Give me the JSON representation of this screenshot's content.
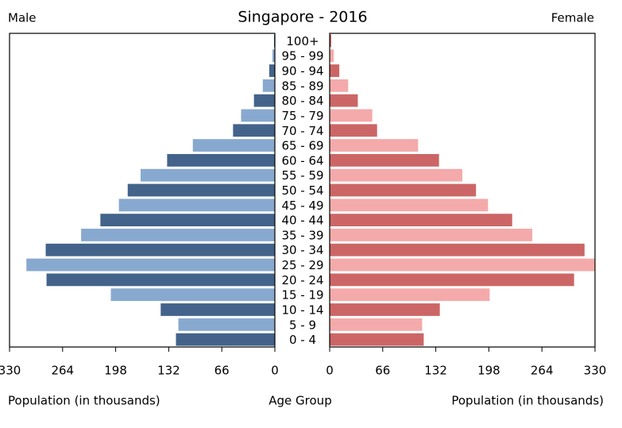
{
  "chart_data": {
    "type": "pyramid",
    "title": "Singapore - 2016",
    "left_label": "Male",
    "right_label": "Female",
    "xlabel": "Population (in thousands)",
    "center_label": "Age Group",
    "categories": [
      "0 - 4",
      "5 - 9",
      "10 - 14",
      "15 - 19",
      "20 - 24",
      "25 - 29",
      "30 - 34",
      "35 - 39",
      "40 - 44",
      "45 - 49",
      "50 - 54",
      "55 - 59",
      "60 - 64",
      "65 - 69",
      "70 - 74",
      "75 - 79",
      "80 - 84",
      "85 - 89",
      "90 - 94",
      "95 - 99",
      "100+"
    ],
    "series": [
      {
        "name": "Male",
        "side": "left",
        "color": [
          "#43638a",
          "#88a9cf"
        ],
        "values": [
          123,
          120,
          142,
          204,
          284,
          309,
          285,
          241,
          217,
          194,
          183,
          167,
          134,
          102,
          52,
          42,
          26,
          15,
          7,
          3,
          1
        ]
      },
      {
        "name": "Female",
        "side": "right",
        "color": [
          "#cc6666",
          "#f4aaaa"
        ],
        "values": [
          117,
          115,
          137,
          199,
          304,
          330,
          317,
          252,
          227,
          197,
          182,
          165,
          136,
          110,
          59,
          53,
          35,
          23,
          12,
          5,
          2
        ]
      }
    ],
    "xlim": [
      0,
      330
    ],
    "xticks": [
      0,
      66,
      132,
      198,
      264,
      330
    ]
  }
}
